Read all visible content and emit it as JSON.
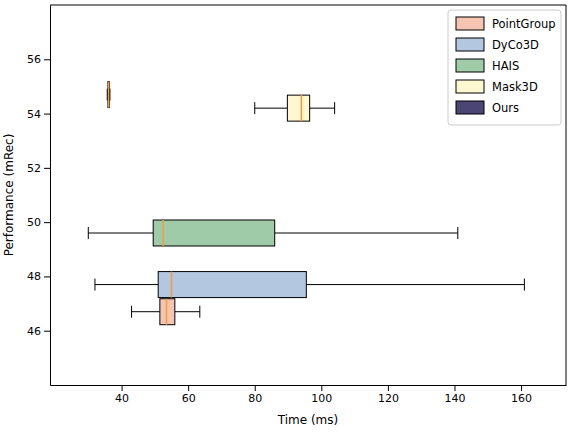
{
  "chart_data": {
    "type": "box",
    "orientation": "horizontal",
    "x_label": "Time (ms)",
    "y_label": "Performance (mRec)",
    "xlim": [
      18.5,
      173.5
    ],
    "xticks": [
      40,
      60,
      80,
      100,
      120,
      140,
      160
    ],
    "ylim": [
      44,
      58
    ],
    "yticks": [
      46,
      48,
      50,
      52,
      54,
      56
    ],
    "grid": false,
    "legend": "upper right",
    "median_color": "#f39c3f",
    "series": [
      {
        "name": "PointGroup",
        "color": "#f6c4b2",
        "y": 46.7,
        "values": [
          43,
          51.5,
          53.5,
          56,
          63.5
        ]
      },
      {
        "name": "DyCo3D",
        "color": "#b3c7e0",
        "y": 47.7,
        "values": [
          32,
          51,
          55,
          95.5,
          161
        ]
      },
      {
        "name": "HAIS",
        "color": "#a0cba9",
        "y": 49.6,
        "values": [
          30,
          49.5,
          52.5,
          86,
          141
        ]
      },
      {
        "name": "Mask3D",
        "color": "#fdf7d2",
        "y": 54.2,
        "values": [
          80,
          89.8,
          94,
          96.5,
          104
        ]
      },
      {
        "name": "Ours",
        "color": "#4b4573",
        "y": 54.7,
        "values": [
          35.7,
          35.9,
          36.1,
          36.3,
          36.5
        ]
      }
    ]
  }
}
